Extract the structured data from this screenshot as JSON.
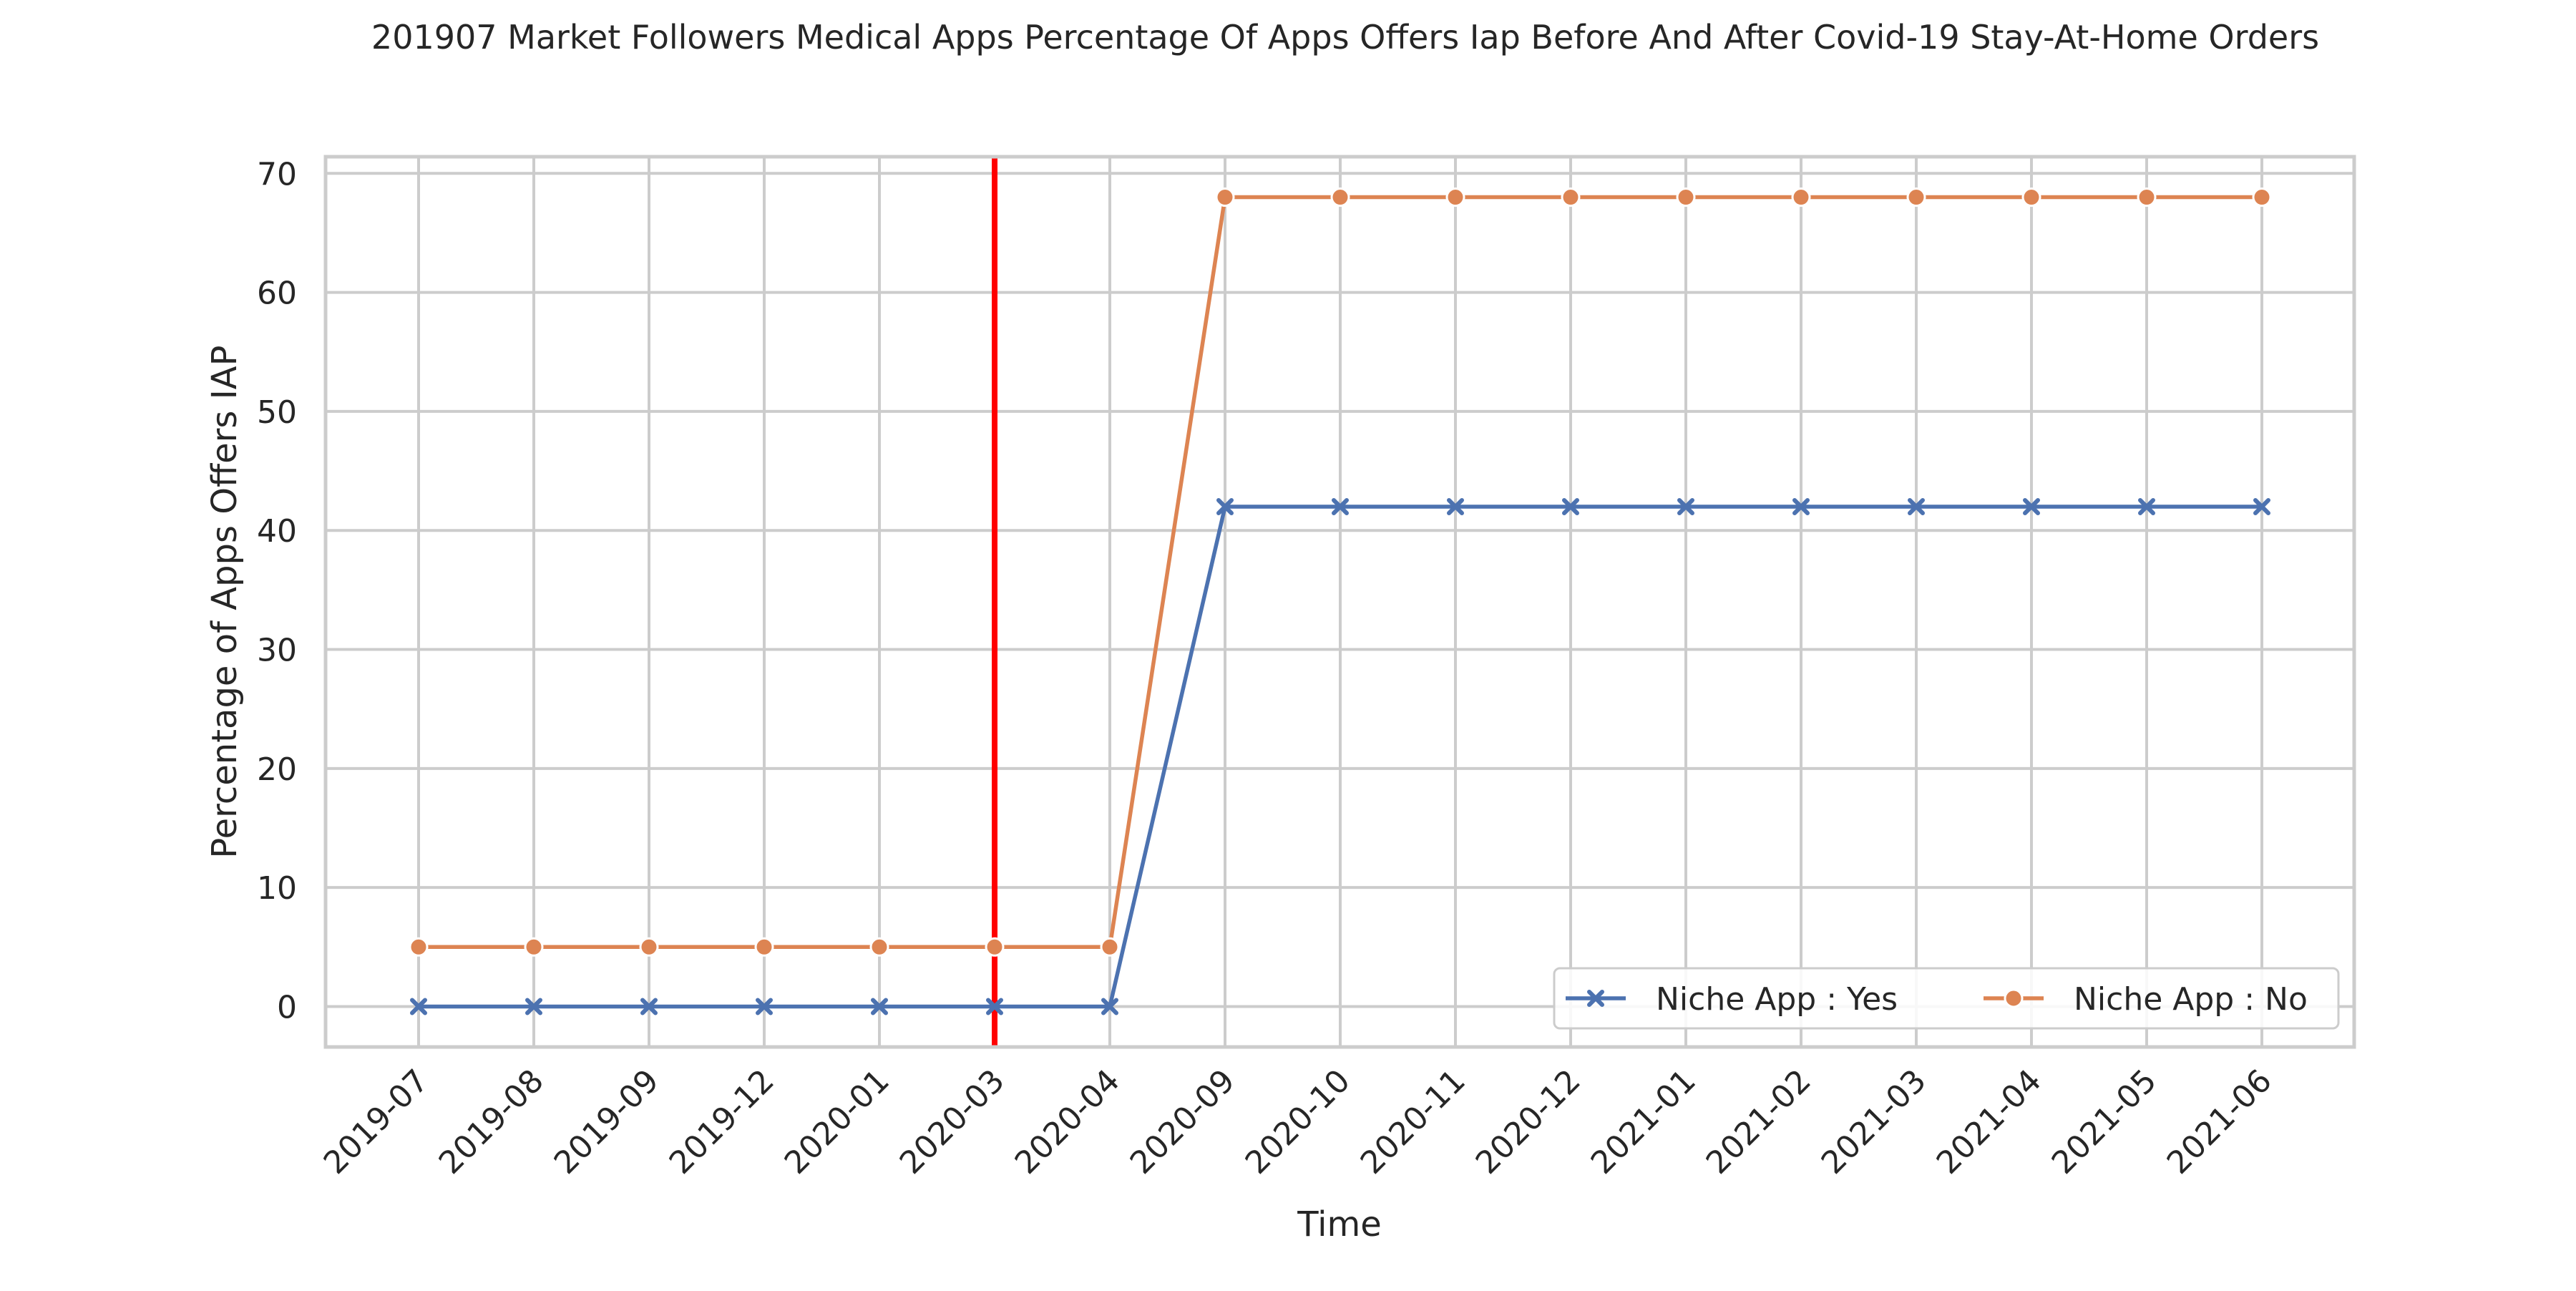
{
  "chart_data": {
    "type": "line",
    "title": "201907 Market Followers Medical Apps Percentage Of Apps Offers Iap Before And After Covid-19 Stay-At-Home Orders",
    "xlabel": "Time",
    "ylabel": "Percentage of Apps Offers IAP",
    "categories": [
      "2019-07",
      "2019-08",
      "2019-09",
      "2019-12",
      "2020-01",
      "2020-03",
      "2020-04",
      "2020-09",
      "2020-10",
      "2020-11",
      "2020-12",
      "2021-01",
      "2021-02",
      "2021-03",
      "2021-04",
      "2021-05",
      "2021-06"
    ],
    "ylim": [
      -3.4,
      71.4
    ],
    "yticks": [
      0,
      10,
      20,
      30,
      40,
      50,
      60,
      70
    ],
    "grid": true,
    "legend_position": "lower-right",
    "series": [
      {
        "name": "Niche App : Yes",
        "color": "#4c72b0",
        "marker": "x",
        "values": [
          0,
          0,
          0,
          0,
          0,
          0,
          0,
          42,
          42,
          42,
          42,
          42,
          42,
          42,
          42,
          42,
          42
        ]
      },
      {
        "name": "Niche App : No",
        "color": "#dd8452",
        "marker": "circle",
        "values": [
          5,
          5,
          5,
          5,
          5,
          5,
          5,
          68,
          68,
          68,
          68,
          68,
          68,
          68,
          68,
          68,
          68
        ]
      }
    ],
    "event_line": {
      "category": "2020-03",
      "color": "#ff0000"
    }
  }
}
